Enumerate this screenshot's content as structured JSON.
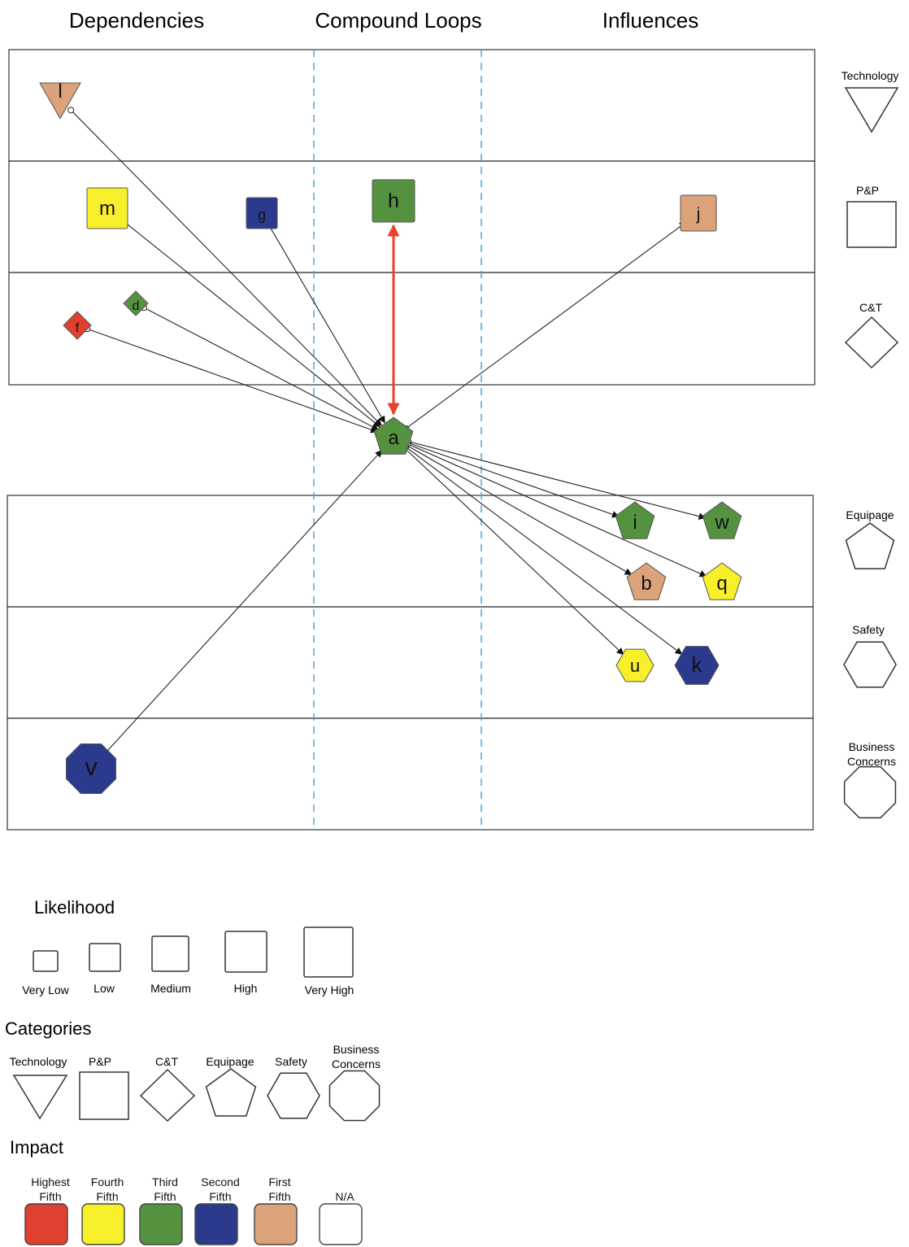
{
  "column_headers": {
    "dependencies": "Dependencies",
    "compound_loops": "Compound Loops",
    "influences": "Influences"
  },
  "colors": {
    "red": "#e0402f",
    "yellow": "#f6ef2a",
    "green": "#54923f",
    "blue": "#2c3a8d",
    "tan": "#dca27a",
    "white": "#ffffff",
    "loop_arrow": "#e8422f",
    "divider": "#4aa3e8"
  },
  "category_side_labels": {
    "technology": "Technology",
    "pp": "P&P",
    "ct": "C&T",
    "equipage": "Equipage",
    "safety": "Safety",
    "business": "Business Concerns"
  },
  "nodes": [
    {
      "id": "l",
      "label": "l",
      "category": "technology",
      "impact": "tan"
    },
    {
      "id": "m",
      "label": "m",
      "category": "pp",
      "impact": "yellow"
    },
    {
      "id": "g",
      "label": "g",
      "category": "pp",
      "impact": "blue"
    },
    {
      "id": "h",
      "label": "h",
      "category": "pp",
      "impact": "green"
    },
    {
      "id": "j",
      "label": "j",
      "category": "pp",
      "impact": "tan"
    },
    {
      "id": "d",
      "label": "d",
      "category": "ct",
      "impact": "green"
    },
    {
      "id": "f",
      "label": "f",
      "category": "ct",
      "impact": "red"
    },
    {
      "id": "a",
      "label": "a",
      "category": "equipage",
      "impact": "green"
    },
    {
      "id": "i",
      "label": "i",
      "category": "equipage",
      "impact": "green"
    },
    {
      "id": "w",
      "label": "w",
      "category": "equipage",
      "impact": "green"
    },
    {
      "id": "b",
      "label": "b",
      "category": "equipage",
      "impact": "tan"
    },
    {
      "id": "q",
      "label": "q",
      "category": "equipage",
      "impact": "yellow"
    },
    {
      "id": "u",
      "label": "u",
      "category": "safety",
      "impact": "yellow"
    },
    {
      "id": "k",
      "label": "k",
      "category": "safety",
      "impact": "blue"
    },
    {
      "id": "v",
      "label": "v",
      "category": "business",
      "impact": "blue"
    }
  ],
  "edges": [
    {
      "from": "l",
      "to": "a"
    },
    {
      "from": "m",
      "to": "a"
    },
    {
      "from": "g",
      "to": "a"
    },
    {
      "from": "d",
      "to": "a"
    },
    {
      "from": "f",
      "to": "a"
    },
    {
      "from": "v",
      "to": "a"
    },
    {
      "from": "a",
      "to": "j"
    },
    {
      "from": "a",
      "to": "i"
    },
    {
      "from": "a",
      "to": "w"
    },
    {
      "from": "a",
      "to": "b"
    },
    {
      "from": "a",
      "to": "q"
    },
    {
      "from": "a",
      "to": "u"
    },
    {
      "from": "a",
      "to": "k"
    },
    {
      "from": "a",
      "to": "h",
      "bidirectional": true
    }
  ],
  "legend": {
    "likelihood": {
      "title": "Likelihood",
      "levels": [
        "Very Low",
        "Low",
        "Medium",
        "High",
        "Very High"
      ]
    },
    "categories": {
      "title": "Categories",
      "items": [
        {
          "key": "technology",
          "label": "Technology"
        },
        {
          "key": "pp",
          "label": "P&P"
        },
        {
          "key": "ct",
          "label": "C&T"
        },
        {
          "key": "equipage",
          "label": "Equipage"
        },
        {
          "key": "safety",
          "label": "Safety"
        },
        {
          "key": "business",
          "label": "Business Concerns"
        }
      ]
    },
    "impact": {
      "title": "Impact",
      "items": [
        {
          "label": "Highest Fifth",
          "color": "red"
        },
        {
          "label": "Fourth Fifth",
          "color": "yellow"
        },
        {
          "label": "Third Fifth",
          "color": "green"
        },
        {
          "label": "Second Fifth",
          "color": "blue"
        },
        {
          "label": "First Fifth",
          "color": "tan"
        },
        {
          "label": "N/A",
          "color": "white"
        }
      ]
    }
  }
}
